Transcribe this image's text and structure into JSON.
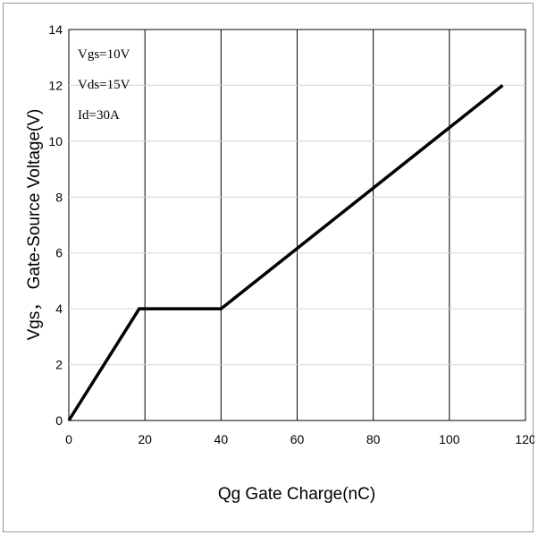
{
  "chart_data": {
    "type": "line",
    "title": "",
    "xlabel": "Qg Gate Charge(nC)",
    "ylabel": "Vgs， Gate-Source Voltage(V)",
    "xlim": [
      0,
      120
    ],
    "ylim": [
      0,
      14
    ],
    "x_ticks": [
      0,
      20,
      40,
      60,
      80,
      100,
      120
    ],
    "y_ticks": [
      0,
      2,
      4,
      6,
      8,
      10,
      12,
      14
    ],
    "grid": true,
    "legend": "none",
    "annotations": [
      "Vgs=10V",
      "Vds=15V",
      "Id=30A"
    ],
    "series": [
      {
        "x": [
          0,
          18.5,
          40,
          114
        ],
        "y": [
          0,
          4,
          4,
          12
        ],
        "color": "#000000"
      }
    ]
  }
}
